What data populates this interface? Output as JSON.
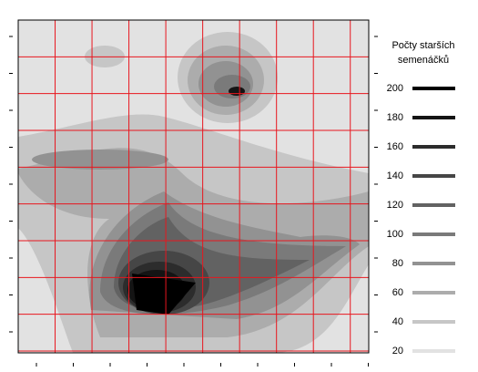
{
  "chart_data": {
    "type": "contour",
    "legend_title": [
      "Počty starších",
      "semenáčků"
    ],
    "levels": [
      {
        "value": 200,
        "color": "#000000"
      },
      {
        "value": 180,
        "color": "#141414"
      },
      {
        "value": 160,
        "color": "#2c2c2c"
      },
      {
        "value": 140,
        "color": "#464646"
      },
      {
        "value": 120,
        "color": "#626262"
      },
      {
        "value": 100,
        "color": "#7a7a7a"
      },
      {
        "value": 80,
        "color": "#929292"
      },
      {
        "value": 60,
        "color": "#acacac"
      },
      {
        "value": 40,
        "color": "#c6c6c6"
      },
      {
        "value": 20,
        "color": "#e2e2e2"
      }
    ],
    "grid": true,
    "grid_color": "#e8161e"
  }
}
